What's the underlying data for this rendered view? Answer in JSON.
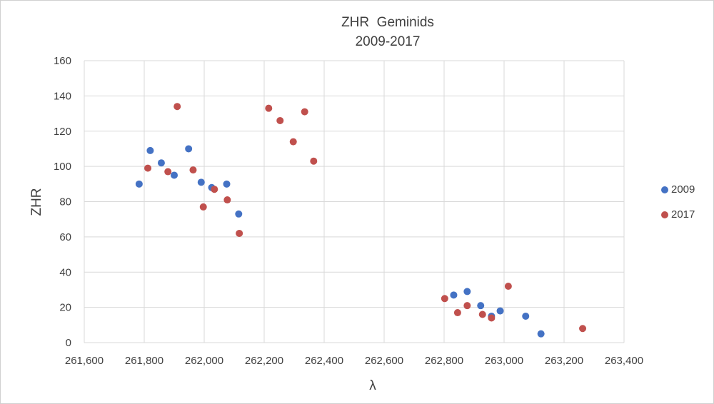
{
  "chart_data": {
    "type": "scatter",
    "title_lines": [
      "ZHR  Geminids",
      "2009-2017"
    ],
    "xlabel": "λ",
    "ylabel": "ZHR",
    "xlim": [
      261600,
      263400
    ],
    "ylim": [
      0,
      160
    ],
    "x_ticks": [
      261600,
      261800,
      262000,
      262200,
      262400,
      262600,
      262800,
      263000,
      263200,
      263400
    ],
    "x_tick_labels": [
      "261,600",
      "261,800",
      "262,000",
      "262,200",
      "262,400",
      "262,600",
      "262,800",
      "263,000",
      "263,200",
      "263,400"
    ],
    "y_ticks": [
      0,
      20,
      40,
      60,
      80,
      100,
      120,
      140,
      160
    ],
    "y_tick_labels": [
      "0",
      "20",
      "40",
      "60",
      "80",
      "100",
      "120",
      "140",
      "160"
    ],
    "grid": true,
    "legend_position": "right",
    "series": [
      {
        "name": "2009",
        "color": "#4472c4",
        "points": [
          [
            261783,
            90
          ],
          [
            261820,
            109
          ],
          [
            261857,
            102
          ],
          [
            261900,
            95
          ],
          [
            261948,
            110
          ],
          [
            261990,
            91
          ],
          [
            262025,
            88
          ],
          [
            262075,
            90
          ],
          [
            262115,
            73
          ],
          [
            262832,
            27
          ],
          [
            262877,
            29
          ],
          [
            262922,
            21
          ],
          [
            262958,
            15
          ],
          [
            262987,
            18
          ],
          [
            263072,
            15
          ],
          [
            263123,
            5
          ]
        ]
      },
      {
        "name": "2017",
        "color": "#c0504d",
        "points": [
          [
            261812,
            99
          ],
          [
            261879,
            97
          ],
          [
            261910,
            134
          ],
          [
            261963,
            98
          ],
          [
            261997,
            77
          ],
          [
            262034,
            87
          ],
          [
            262077,
            81
          ],
          [
            262117,
            62
          ],
          [
            262215,
            133
          ],
          [
            262253,
            126
          ],
          [
            262297,
            114
          ],
          [
            262335,
            131
          ],
          [
            262365,
            103
          ],
          [
            262802,
            25
          ],
          [
            262845,
            17
          ],
          [
            262877,
            21
          ],
          [
            262928,
            16
          ],
          [
            262958,
            14
          ],
          [
            263014,
            32
          ],
          [
            263262,
            8
          ]
        ]
      }
    ]
  }
}
